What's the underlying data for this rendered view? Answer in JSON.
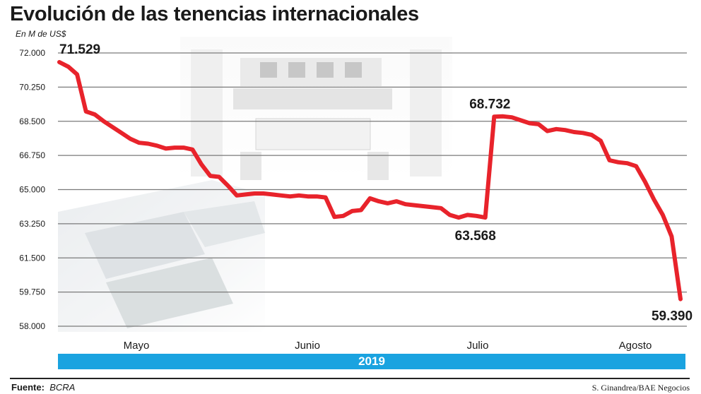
{
  "header": {
    "title": "Evolución de las tenencias internacionales",
    "unit": "En M de US$"
  },
  "chart_data": {
    "type": "line",
    "title": "Evolución de las tenencias internacionales",
    "ylabel": "En M de US$",
    "xlabel": "",
    "ylim": [
      58000,
      72000
    ],
    "yticks": [
      "72.000",
      "70.250",
      "68.500",
      "66.750",
      "65.000",
      "63.250",
      "61.500",
      "59.750",
      "58.000"
    ],
    "ytick_values": [
      72000,
      70250,
      68500,
      66750,
      65000,
      63250,
      61500,
      59750,
      58000
    ],
    "xticks": [
      "Mayo",
      "Junio",
      "Julio",
      "Agosto"
    ],
    "year_label": "2019",
    "grid": true,
    "line_color": "#e8232b",
    "series": [
      {
        "values": [
          71529,
          71300,
          70900,
          69000,
          68850,
          68500,
          68200,
          67900,
          67600,
          67400,
          67350,
          67250,
          67100,
          67150,
          67150,
          67050,
          66300,
          65700,
          65650,
          65200,
          64700,
          64750,
          64800,
          64800,
          64750,
          64700,
          64650,
          64700,
          64650,
          64650,
          64600,
          63600,
          63650,
          63900,
          63950,
          64550,
          64400,
          64300,
          64400,
          64250,
          64200,
          64150,
          64100,
          64050,
          63700,
          63568,
          63700,
          63650,
          63568,
          68732,
          68750,
          68700,
          68550,
          68400,
          68350,
          68000,
          68100,
          68050,
          67950,
          67900,
          67800,
          67500,
          66500,
          66400,
          66350,
          66200,
          65400,
          64500,
          63700,
          62600,
          59390
        ]
      }
    ],
    "annotations": [
      {
        "label": "71.529",
        "value": 71529
      },
      {
        "label": "68.732",
        "value": 68732
      },
      {
        "label": "63.568",
        "value": 63568
      },
      {
        "label": "59.390",
        "value": 59390
      }
    ]
  },
  "footer": {
    "source_label": "Fuente:",
    "source_value": "BCRA",
    "credit": "S. Ginandrea/BAE Negocios"
  }
}
